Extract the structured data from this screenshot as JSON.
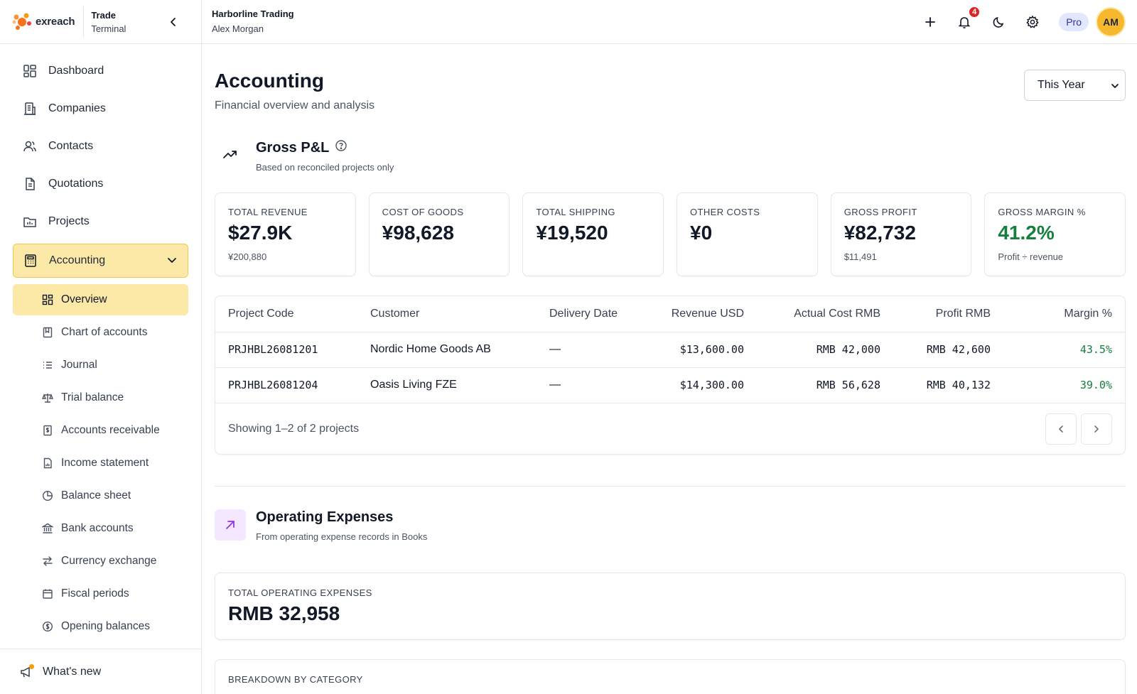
{
  "brand": {
    "logo_text": "exreach",
    "line1": "Trade",
    "line2": "Terminal"
  },
  "org": {
    "name": "Harborline Trading",
    "user": "Alex Morgan"
  },
  "header": {
    "notification_count": "4",
    "plan": "Pro",
    "avatar_initials": "AM"
  },
  "sidebar": {
    "items": [
      {
        "label": "Dashboard",
        "icon": "dashboard-icon"
      },
      {
        "label": "Companies",
        "icon": "building-icon"
      },
      {
        "label": "Contacts",
        "icon": "users-icon"
      },
      {
        "label": "Quotations",
        "icon": "document-icon"
      },
      {
        "label": "Projects",
        "icon": "folder-icon"
      },
      {
        "label": "Accounting",
        "icon": "calculator-icon"
      }
    ],
    "sub_items": [
      {
        "label": "Overview",
        "icon": "grid-icon"
      },
      {
        "label": "Chart of accounts",
        "icon": "book-icon"
      },
      {
        "label": "Journal",
        "icon": "list-icon"
      },
      {
        "label": "Trial balance",
        "icon": "scale-icon"
      },
      {
        "label": "Accounts receivable",
        "icon": "receipt-icon"
      },
      {
        "label": "Income statement",
        "icon": "file-chart-icon"
      },
      {
        "label": "Balance sheet",
        "icon": "pie-icon"
      },
      {
        "label": "Bank accounts",
        "icon": "bank-icon"
      },
      {
        "label": "Currency exchange",
        "icon": "exchange-icon"
      },
      {
        "label": "Fiscal periods",
        "icon": "calendar-icon"
      },
      {
        "label": "Opening balances",
        "icon": "dollar-circle-icon"
      }
    ],
    "whats_new": "What's new"
  },
  "page": {
    "title": "Accounting",
    "subtitle": "Financial overview and analysis",
    "period": "This Year"
  },
  "gross_pl": {
    "title": "Gross P&L",
    "subtitle": "Based on reconciled projects only",
    "kpis": [
      {
        "label": "TOTAL REVENUE",
        "value": "$27.9K",
        "sub": "¥200,880"
      },
      {
        "label": "COST OF GOODS",
        "value": "¥98,628",
        "sub": ""
      },
      {
        "label": "TOTAL SHIPPING",
        "value": "¥19,520",
        "sub": ""
      },
      {
        "label": "OTHER COSTS",
        "value": "¥0",
        "sub": ""
      },
      {
        "label": "GROSS PROFIT",
        "value": "¥82,732",
        "sub": "$11,491"
      },
      {
        "label": "GROSS MARGIN %",
        "value": "41.2%",
        "sub": "Profit ÷ revenue"
      }
    ],
    "table": {
      "columns": [
        "Project Code",
        "Customer",
        "Delivery Date",
        "Revenue USD",
        "Actual Cost RMB",
        "Profit RMB",
        "Margin %"
      ],
      "rows": [
        {
          "code": "PRJHBL26081201",
          "customer": "Nordic Home Goods AB",
          "delivery": "—",
          "revenue": "$13,600.00",
          "cost": "RMB 42,000",
          "profit": "RMB 42,600",
          "margin": "43.5%"
        },
        {
          "code": "PRJHBL26081204",
          "customer": "Oasis Living FZE",
          "delivery": "—",
          "revenue": "$14,300.00",
          "cost": "RMB 56,628",
          "profit": "RMB 40,132",
          "margin": "39.0%"
        }
      ],
      "footer": "Showing 1–2 of 2 projects"
    }
  },
  "opex": {
    "title": "Operating Expenses",
    "subtitle": "From operating expense records in Books",
    "total_label": "TOTAL OPERATING EXPENSES",
    "total_value": "RMB 32,958",
    "breakdown_label": "BREAKDOWN BY CATEGORY"
  },
  "colors": {
    "accent": "#fde9a7",
    "accent_border": "#f2c94c",
    "positive": "#15803d",
    "badge": "#dc2626"
  }
}
